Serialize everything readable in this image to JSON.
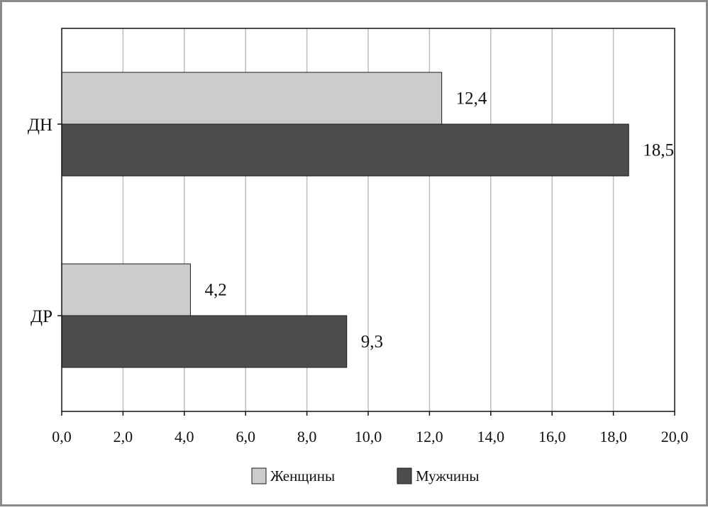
{
  "chart_data": {
    "type": "bar",
    "orientation": "horizontal",
    "categories": [
      "ДН",
      "ДР"
    ],
    "series": [
      {
        "name": "Женщины",
        "values": [
          12.4,
          4.2
        ],
        "labels": [
          "12,4",
          "4,2"
        ],
        "color": "#cccccc"
      },
      {
        "name": "Мужчины",
        "values": [
          18.5,
          9.3
        ],
        "labels": [
          "18,5",
          "9,3"
        ],
        "color": "#4d4d4f"
      }
    ],
    "xlim": [
      0,
      20
    ],
    "x_ticks": [
      0,
      2,
      4,
      6,
      8,
      10,
      12,
      14,
      16,
      18,
      20
    ],
    "x_tick_labels": [
      "0,0",
      "2,0",
      "4,0",
      "6,0",
      "8,0",
      "10,0",
      "12,0",
      "14,0",
      "16,0",
      "18,0",
      "20,0"
    ],
    "grid": true,
    "legend_position": "bottom-center",
    "title": "",
    "xlabel": "",
    "ylabel": ""
  }
}
